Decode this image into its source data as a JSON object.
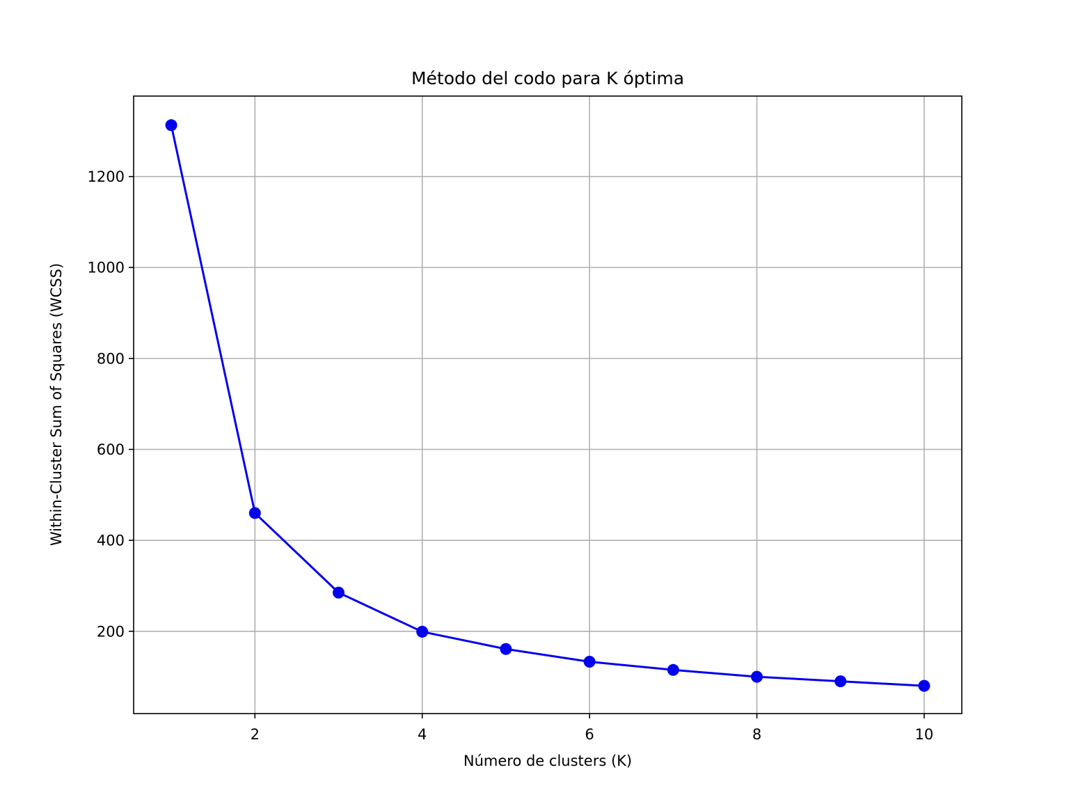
{
  "chart_data": {
    "type": "line",
    "title": "Método del codo para K óptima",
    "xlabel": "Número de clusters (K)",
    "ylabel": "Within-Cluster Sum of Squares (WCSS)",
    "x": [
      1,
      2,
      3,
      4,
      5,
      6,
      7,
      8,
      9,
      10
    ],
    "series": [
      {
        "values": [
          1313,
          460,
          285,
          199,
          161,
          133,
          115,
          100,
          90,
          80
        ],
        "color": "#0000ee",
        "marker": "circle"
      }
    ],
    "xlim": [
      0.55,
      10.45
    ],
    "ylim": [
      19,
      1377
    ],
    "xticks": [
      2,
      4,
      6,
      8,
      10
    ],
    "xtick_labels": [
      "2",
      "4",
      "6",
      "8",
      "10"
    ],
    "yticks": [
      200,
      400,
      600,
      800,
      1000,
      1200
    ],
    "ytick_labels": [
      "200",
      "400",
      "600",
      "800",
      "1000",
      "1200"
    ],
    "grid": true
  }
}
